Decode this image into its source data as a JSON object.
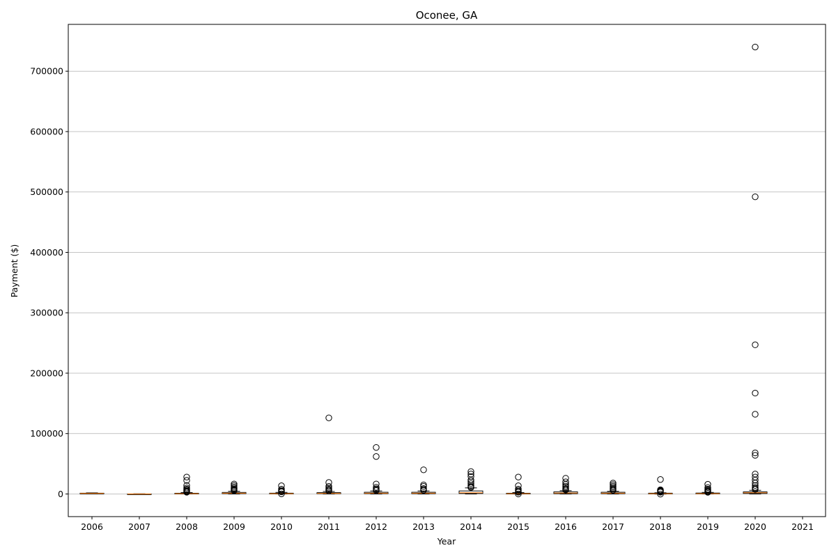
{
  "chart_data": {
    "type": "box",
    "title": "Oconee, GA",
    "xlabel": "Year",
    "ylabel": "Payment ($)",
    "categories": [
      "2006",
      "2007",
      "2008",
      "2009",
      "2010",
      "2011",
      "2012",
      "2013",
      "2014",
      "2015",
      "2016",
      "2017",
      "2018",
      "2019",
      "2020",
      "2021"
    ],
    "ylim": [
      -37500,
      777500
    ],
    "yticks": [
      0,
      100000,
      200000,
      300000,
      400000,
      500000,
      600000,
      700000
    ],
    "grid": "y",
    "colors": {
      "box": "#000000",
      "median": "#ff7f0e",
      "grid": "#b0b0b0"
    },
    "boxes": [
      {
        "year": "2006",
        "q1": 800,
        "median": 1000,
        "q3": 1300,
        "whislo": 400,
        "whishi": 1800,
        "fliers": []
      },
      {
        "year": "2007",
        "q1": -300,
        "median": -100,
        "q3": 100,
        "whislo": -500,
        "whishi": 300,
        "fliers": []
      },
      {
        "year": "2008",
        "q1": 100,
        "median": 500,
        "q3": 1200,
        "whislo": -100,
        "whishi": 2200,
        "fliers": [
          28000,
          22500,
          14000,
          10000,
          8000,
          6500,
          5000,
          4000,
          3000
        ]
      },
      {
        "year": "2009",
        "q1": 600,
        "median": 1200,
        "q3": 2500,
        "whislo": 0,
        "whishi": 4500,
        "fliers": [
          16500,
          14000,
          11500,
          9500,
          8000,
          6500,
          5500
        ]
      },
      {
        "year": "2010",
        "q1": 200,
        "median": 600,
        "q3": 1300,
        "whislo": 0,
        "whishi": 2500,
        "fliers": [
          13500,
          8000,
          6000,
          4500,
          3500,
          200
        ]
      },
      {
        "year": "2011",
        "q1": 500,
        "median": 1000,
        "q3": 2200,
        "whislo": 0,
        "whishi": 4200,
        "fliers": [
          126000,
          19000,
          12500,
          10000,
          8000,
          6500,
          5000
        ]
      },
      {
        "year": "2012",
        "q1": 600,
        "median": 1300,
        "q3": 2800,
        "whislo": 0,
        "whishi": 5000,
        "fliers": [
          77000,
          62000,
          16500,
          11000,
          8500,
          7000,
          5500
        ]
      },
      {
        "year": "2013",
        "q1": 500,
        "median": 1200,
        "q3": 2800,
        "whislo": 0,
        "whishi": 5000,
        "fliers": [
          40000,
          15000,
          12500,
          9000,
          7500,
          6000
        ]
      },
      {
        "year": "2014",
        "q1": 800,
        "median": 2000,
        "q3": 5000,
        "whislo": 0,
        "whishi": 10000,
        "fliers": [
          37000,
          33000,
          29000,
          23000,
          20000,
          17000,
          14000,
          12000,
          10500
        ]
      },
      {
        "year": "2015",
        "q1": 200,
        "median": 500,
        "q3": 1200,
        "whislo": 0,
        "whishi": 2200,
        "fliers": [
          28000,
          13500,
          8000,
          6000,
          4000,
          3000,
          0
        ]
      },
      {
        "year": "2016",
        "q1": 500,
        "median": 1500,
        "q3": 3500,
        "whislo": 0,
        "whishi": 5500,
        "fliers": [
          26000,
          20000,
          16000,
          13000,
          11000,
          9000,
          7500,
          6500
        ]
      },
      {
        "year": "2017",
        "q1": 500,
        "median": 1300,
        "q3": 2800,
        "whislo": 0,
        "whishi": 4500,
        "fliers": [
          18000,
          15500,
          13000,
          11000,
          9000,
          7500,
          6000
        ]
      },
      {
        "year": "2018",
        "q1": 100,
        "median": 500,
        "q3": 1300,
        "whislo": -200,
        "whishi": 2000,
        "fliers": [
          24000,
          7000,
          6000,
          5000,
          4000,
          3000,
          -300
        ]
      },
      {
        "year": "2019",
        "q1": 200,
        "median": 600,
        "q3": 1500,
        "whislo": 0,
        "whishi": 2500,
        "fliers": [
          16000,
          10500,
          8000,
          6500,
          5000,
          4000,
          2800
        ]
      },
      {
        "year": "2020",
        "q1": 800,
        "median": 2000,
        "q3": 3500,
        "whislo": 0,
        "whishi": 6000,
        "fliers": [
          740000,
          492000,
          247000,
          167000,
          132000,
          68000,
          64000,
          33000,
          28000,
          23000,
          18000,
          14000,
          11000,
          9000,
          7500
        ]
      },
      {
        "year": "2021",
        "q1": null,
        "median": null,
        "q3": null,
        "whislo": null,
        "whishi": null,
        "fliers": []
      }
    ]
  }
}
